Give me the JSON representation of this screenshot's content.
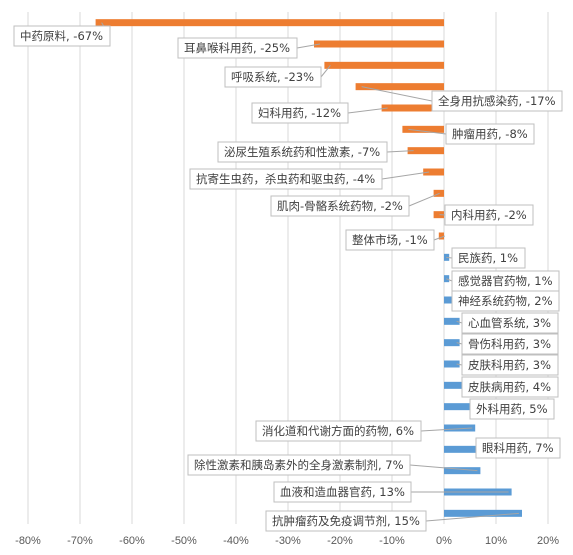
{
  "chart_data": {
    "type": "bar",
    "orientation": "horizontal",
    "title": "",
    "xlabel": "",
    "ylabel": "",
    "xlim": [
      -0.8,
      0.2
    ],
    "x_ticks": [
      "-80%",
      "-70%",
      "-60%",
      "-50%",
      "-40%",
      "-30%",
      "-20%",
      "-10%",
      "0%",
      "10%",
      "20%"
    ],
    "grid": true,
    "colors": {
      "negative": "#ED7D31",
      "positive": "#5B9BD5"
    },
    "categories": [
      "中药原料",
      "耳鼻喉科用药",
      "呼吸系统",
      "全身用抗感染药",
      "妇科用药",
      "肿瘤用药",
      "泌尿生殖系统药和性激素",
      "抗寄生虫药，杀虫药和驱虫药",
      "肌肉-骨骼系统药物",
      "内科用药",
      "整体市场",
      "民族药",
      "感觉器官药物",
      "神经系统药物",
      "心血管系统",
      "骨伤科用药",
      "皮肤科用药",
      "皮肤病用药",
      "外科用药",
      "消化道和代谢方面的药物",
      "眼科用药",
      "除性激素和胰岛素外的全身激素制剂",
      "血液和造血器官药",
      "抗肿瘤药及免疫调节剂"
    ],
    "values": [
      -0.67,
      -0.25,
      -0.23,
      -0.17,
      -0.12,
      -0.08,
      -0.07,
      -0.04,
      -0.02,
      -0.02,
      -0.01,
      0.01,
      0.01,
      0.02,
      0.03,
      0.03,
      0.03,
      0.04,
      0.05,
      0.06,
      0.07,
      0.07,
      0.13,
      0.15
    ],
    "data_labels": [
      "中药原料, -67%",
      "耳鼻喉科用药, -25%",
      "呼吸系统, -23%",
      "全身用抗感染药, -17%",
      "妇科用药, -12%",
      "肿瘤用药, -8%",
      "泌尿生殖系统药和性激素, -7%",
      "抗寄生虫药，杀虫药和驱虫药, -4%",
      "肌肉-骨骼系统药物, -2%",
      "内科用药, -2%",
      "整体市场, -1%",
      "民族药, 1%",
      "感觉器官药物, 1%",
      "神经系统药物, 2%",
      "心血管系统, 3%",
      "骨伤科用药, 3%",
      "皮肤科用药, 3%",
      "皮肤病用药, 4%",
      "外科用药, 5%",
      "消化道和代谢方面的药物, 6%",
      "眼科用药, 7%",
      "除性激素和胰岛素外的全身激素制剂, 7%",
      "血液和造血器官药, 13%",
      "抗肿瘤药及免疫调节剂, 15%"
    ],
    "callout_style": "data-callout-with-leader-lines"
  }
}
